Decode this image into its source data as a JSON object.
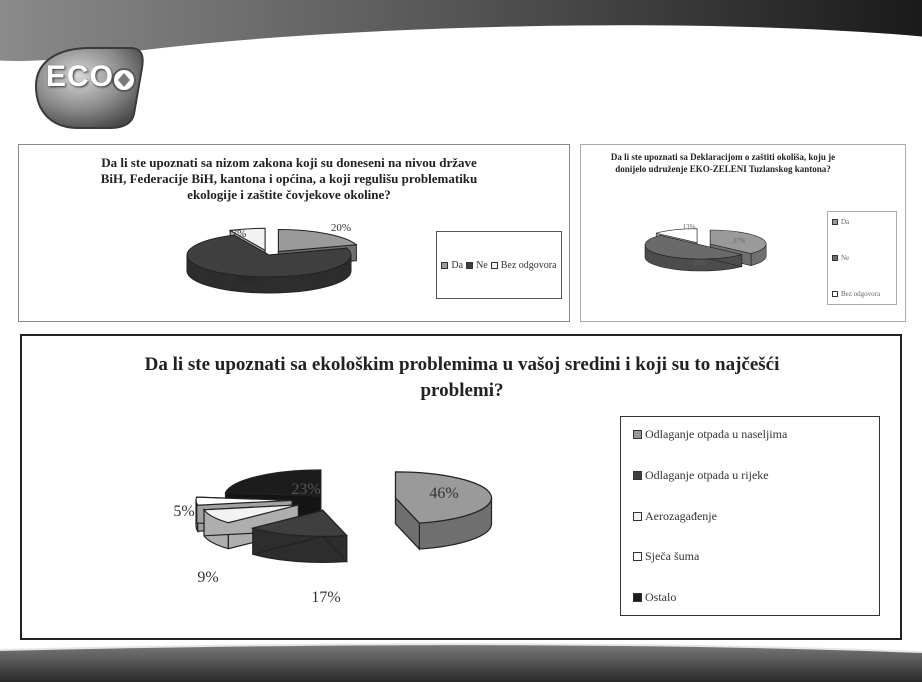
{
  "logo": {
    "text": "ECO"
  },
  "colors": {
    "da": "#9a9a9a",
    "ne": "#3f3f3f",
    "bez": "#f2f2f2",
    "sjeca": "#ffffff",
    "ostalo": "#1c1c1c"
  },
  "chart_data": [
    {
      "type": "pie",
      "title": "Da li ste upoznati sa nizom zakona koji su doneseni na nivou države BiH, Federacije BiH, kantona i općina, a koji regulišu problematiku ekologije i zaštite čovjekove okoline?",
      "categories": [
        "Da",
        "Ne",
        "Bez odgovora"
      ],
      "values": [
        20,
        73,
        7
      ],
      "data_labels": [
        "20%",
        "73%",
        "7%"
      ],
      "colors": [
        "#9a9a9a",
        "#3f3f3f",
        "#f2f2f2"
      ],
      "legend": "right"
    },
    {
      "type": "pie",
      "title": "Da li ste upoznati sa Deklaracijom o zaštiti okoliša, koju je donijelo udruženje EKO-ZELENI Tuzlanskog kantona?",
      "categories": [
        "Da",
        "Ne",
        "Bez odgovora"
      ],
      "values": [
        37,
        50,
        13
      ],
      "data_labels": [
        "37%",
        "50%",
        "13%"
      ],
      "colors": [
        "#9a9a9a",
        "#6a6a6a",
        "#ffffff"
      ],
      "legend": "right"
    },
    {
      "type": "pie",
      "title": "Da li ste upoznati sa ekološkim problemima u vašoj sredini i koji su to najčešći problemi?",
      "categories": [
        "Odlaganje otpada u naseljima",
        "Odlaganje otpada u rijeke",
        "Aerozagađenje",
        "Sječa šuma",
        "Ostalo"
      ],
      "values": [
        46,
        17,
        9,
        5,
        23
      ],
      "data_labels": [
        "46%",
        "17%",
        "9%",
        "5%",
        "23%"
      ],
      "colors": [
        "#9a9a9a",
        "#3f3f3f",
        "#f2f2f2",
        "#ffffff",
        "#1c1c1c"
      ],
      "legend": "right"
    }
  ]
}
